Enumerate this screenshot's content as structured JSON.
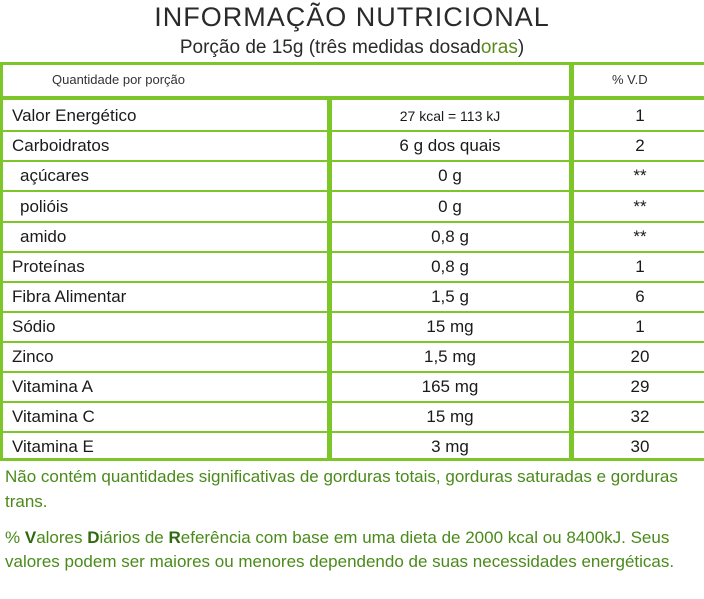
{
  "header": {
    "title": "INFORMAÇÃO NUTRICIONAL",
    "subtitle_main": "Porção de 15g (três medidas dosad",
    "subtitle_accent": "oras",
    "subtitle_end": ")"
  },
  "table": {
    "col_header_left": "Quantidade por porção",
    "col_header_right": "% V.D",
    "rows": [
      {
        "name": "Valor Energético",
        "qty": "27 kcal = 113 kJ",
        "vd": "1"
      },
      {
        "name": "Carboidratos",
        "qty": "6 g dos quais",
        "vd": "2"
      },
      {
        "name": "açúcares",
        "qty": "0 g",
        "vd": "**"
      },
      {
        "name": "polióis",
        "qty": "0 g",
        "vd": "**"
      },
      {
        "name": "amido",
        "qty": "0,8 g",
        "vd": "**"
      },
      {
        "name": "Proteínas",
        "qty": "0,8 g",
        "vd": "1"
      },
      {
        "name": "Fibra Alimentar",
        "qty": "1,5 g",
        "vd": "6"
      },
      {
        "name": "Sódio",
        "qty": "15 mg",
        "vd": "1"
      },
      {
        "name": "Zinco",
        "qty": "1,5 mg",
        "vd": "20"
      },
      {
        "name": "Vitamina A",
        "qty": "165 mg",
        "vd": "29"
      },
      {
        "name": "Vitamina C",
        "qty": "15 mg",
        "vd": "32"
      },
      {
        "name": "Vitamina E",
        "qty": "3 mg",
        "vd": "30"
      }
    ]
  },
  "notes": {
    "note1": "Não contém quantidades significativas de gorduras totais, gorduras saturadas e gorduras trans.",
    "note2_p1": "% ",
    "note2_v": "V",
    "note2_p2": "alores ",
    "note2_d": "D",
    "note2_p3": "iários de ",
    "note2_r": "R",
    "note2_p4": "eferência com base em uma dieta de 2000 kcal ou 8400kJ. Seus valores podem ser maiores ou menores dependendo de suas necessidades energéticas."
  },
  "colors": {
    "accent_green": "#7cc62a",
    "text_green": "#4a8a1a"
  }
}
